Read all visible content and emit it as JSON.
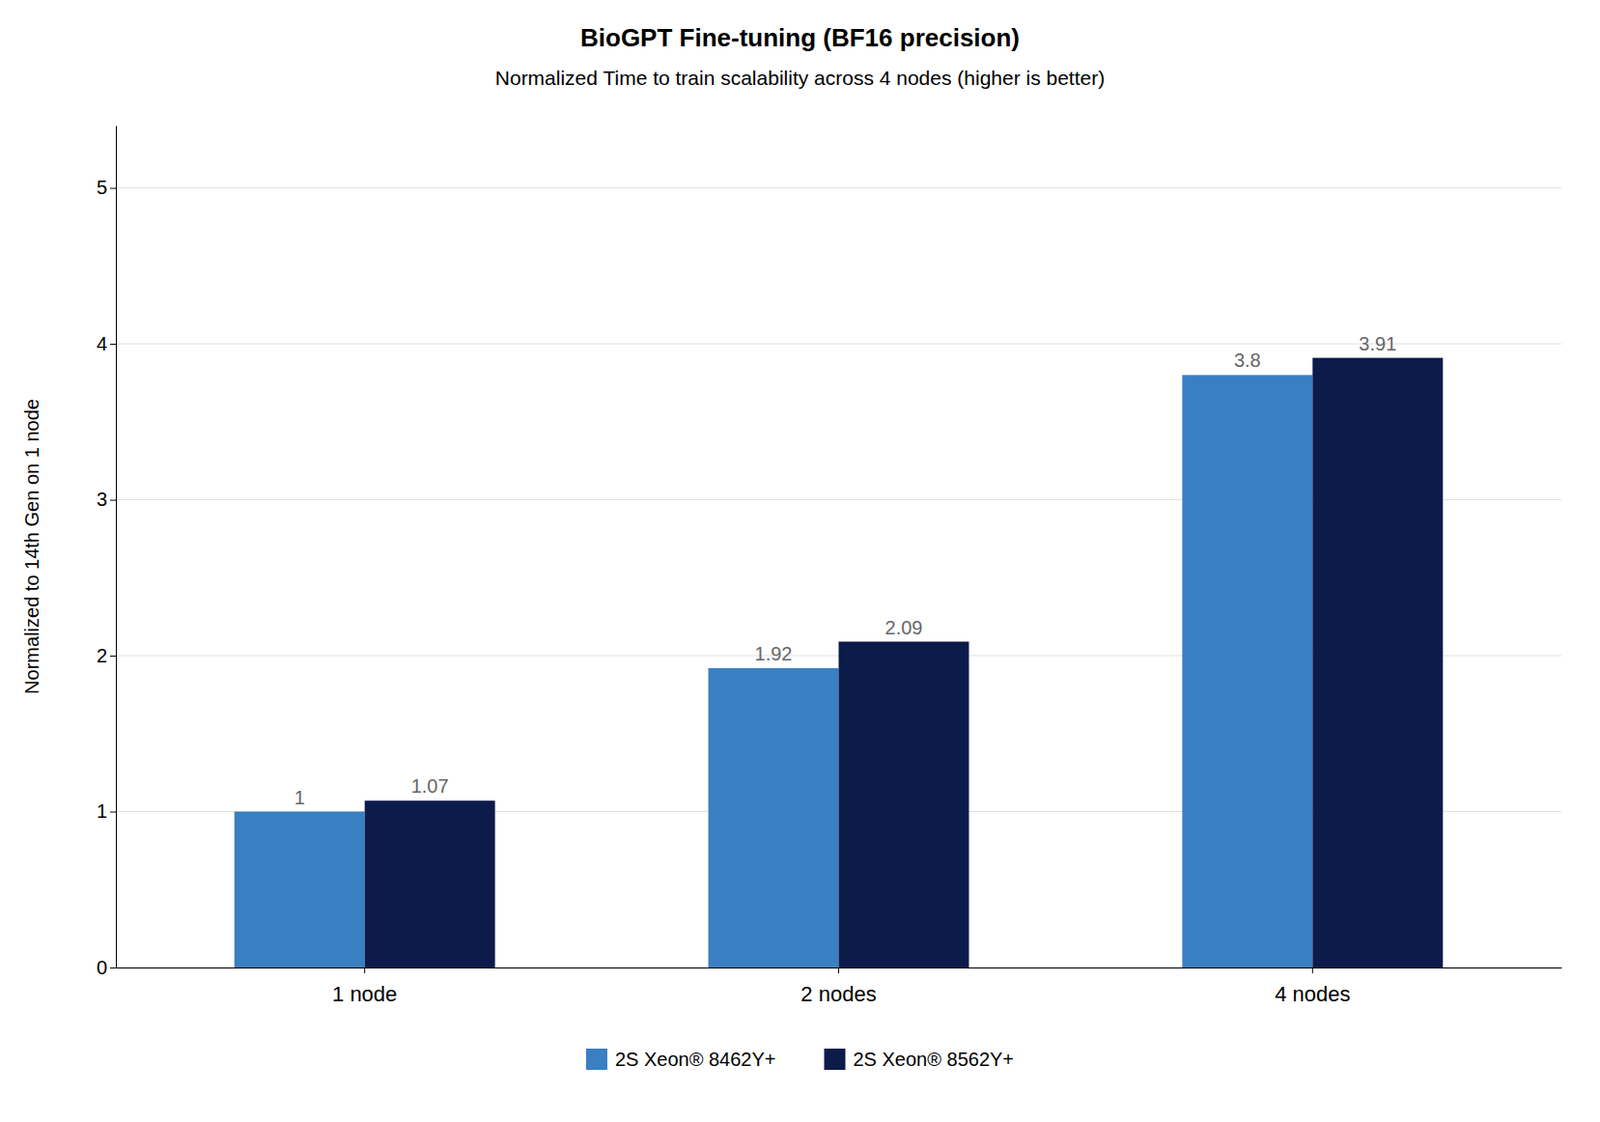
{
  "chart_data": {
    "type": "bar",
    "title": "BioGPT Fine-tuning (BF16 precision)",
    "subtitle": "Normalized Time to train scalability across 4 nodes (higher is better)",
    "categories": [
      "1 node",
      "2 nodes",
      "4 nodes"
    ],
    "series": [
      {
        "name": "2S Xeon® 8462Y+",
        "color": "#3A7FC1",
        "values": [
          1,
          1.92,
          3.8
        ]
      },
      {
        "name": "2S Xeon® 8562Y+",
        "color": "#0D1B4B",
        "values": [
          1.07,
          2.09,
          3.91
        ]
      }
    ],
    "y_label": "Normalized to 14th Gen on 1 node",
    "ylim": [
      0,
      5.4
    ],
    "yticks": [
      0,
      1,
      2,
      3,
      4,
      5
    ],
    "grid": true,
    "legend": "bottom",
    "data_labels": true
  }
}
